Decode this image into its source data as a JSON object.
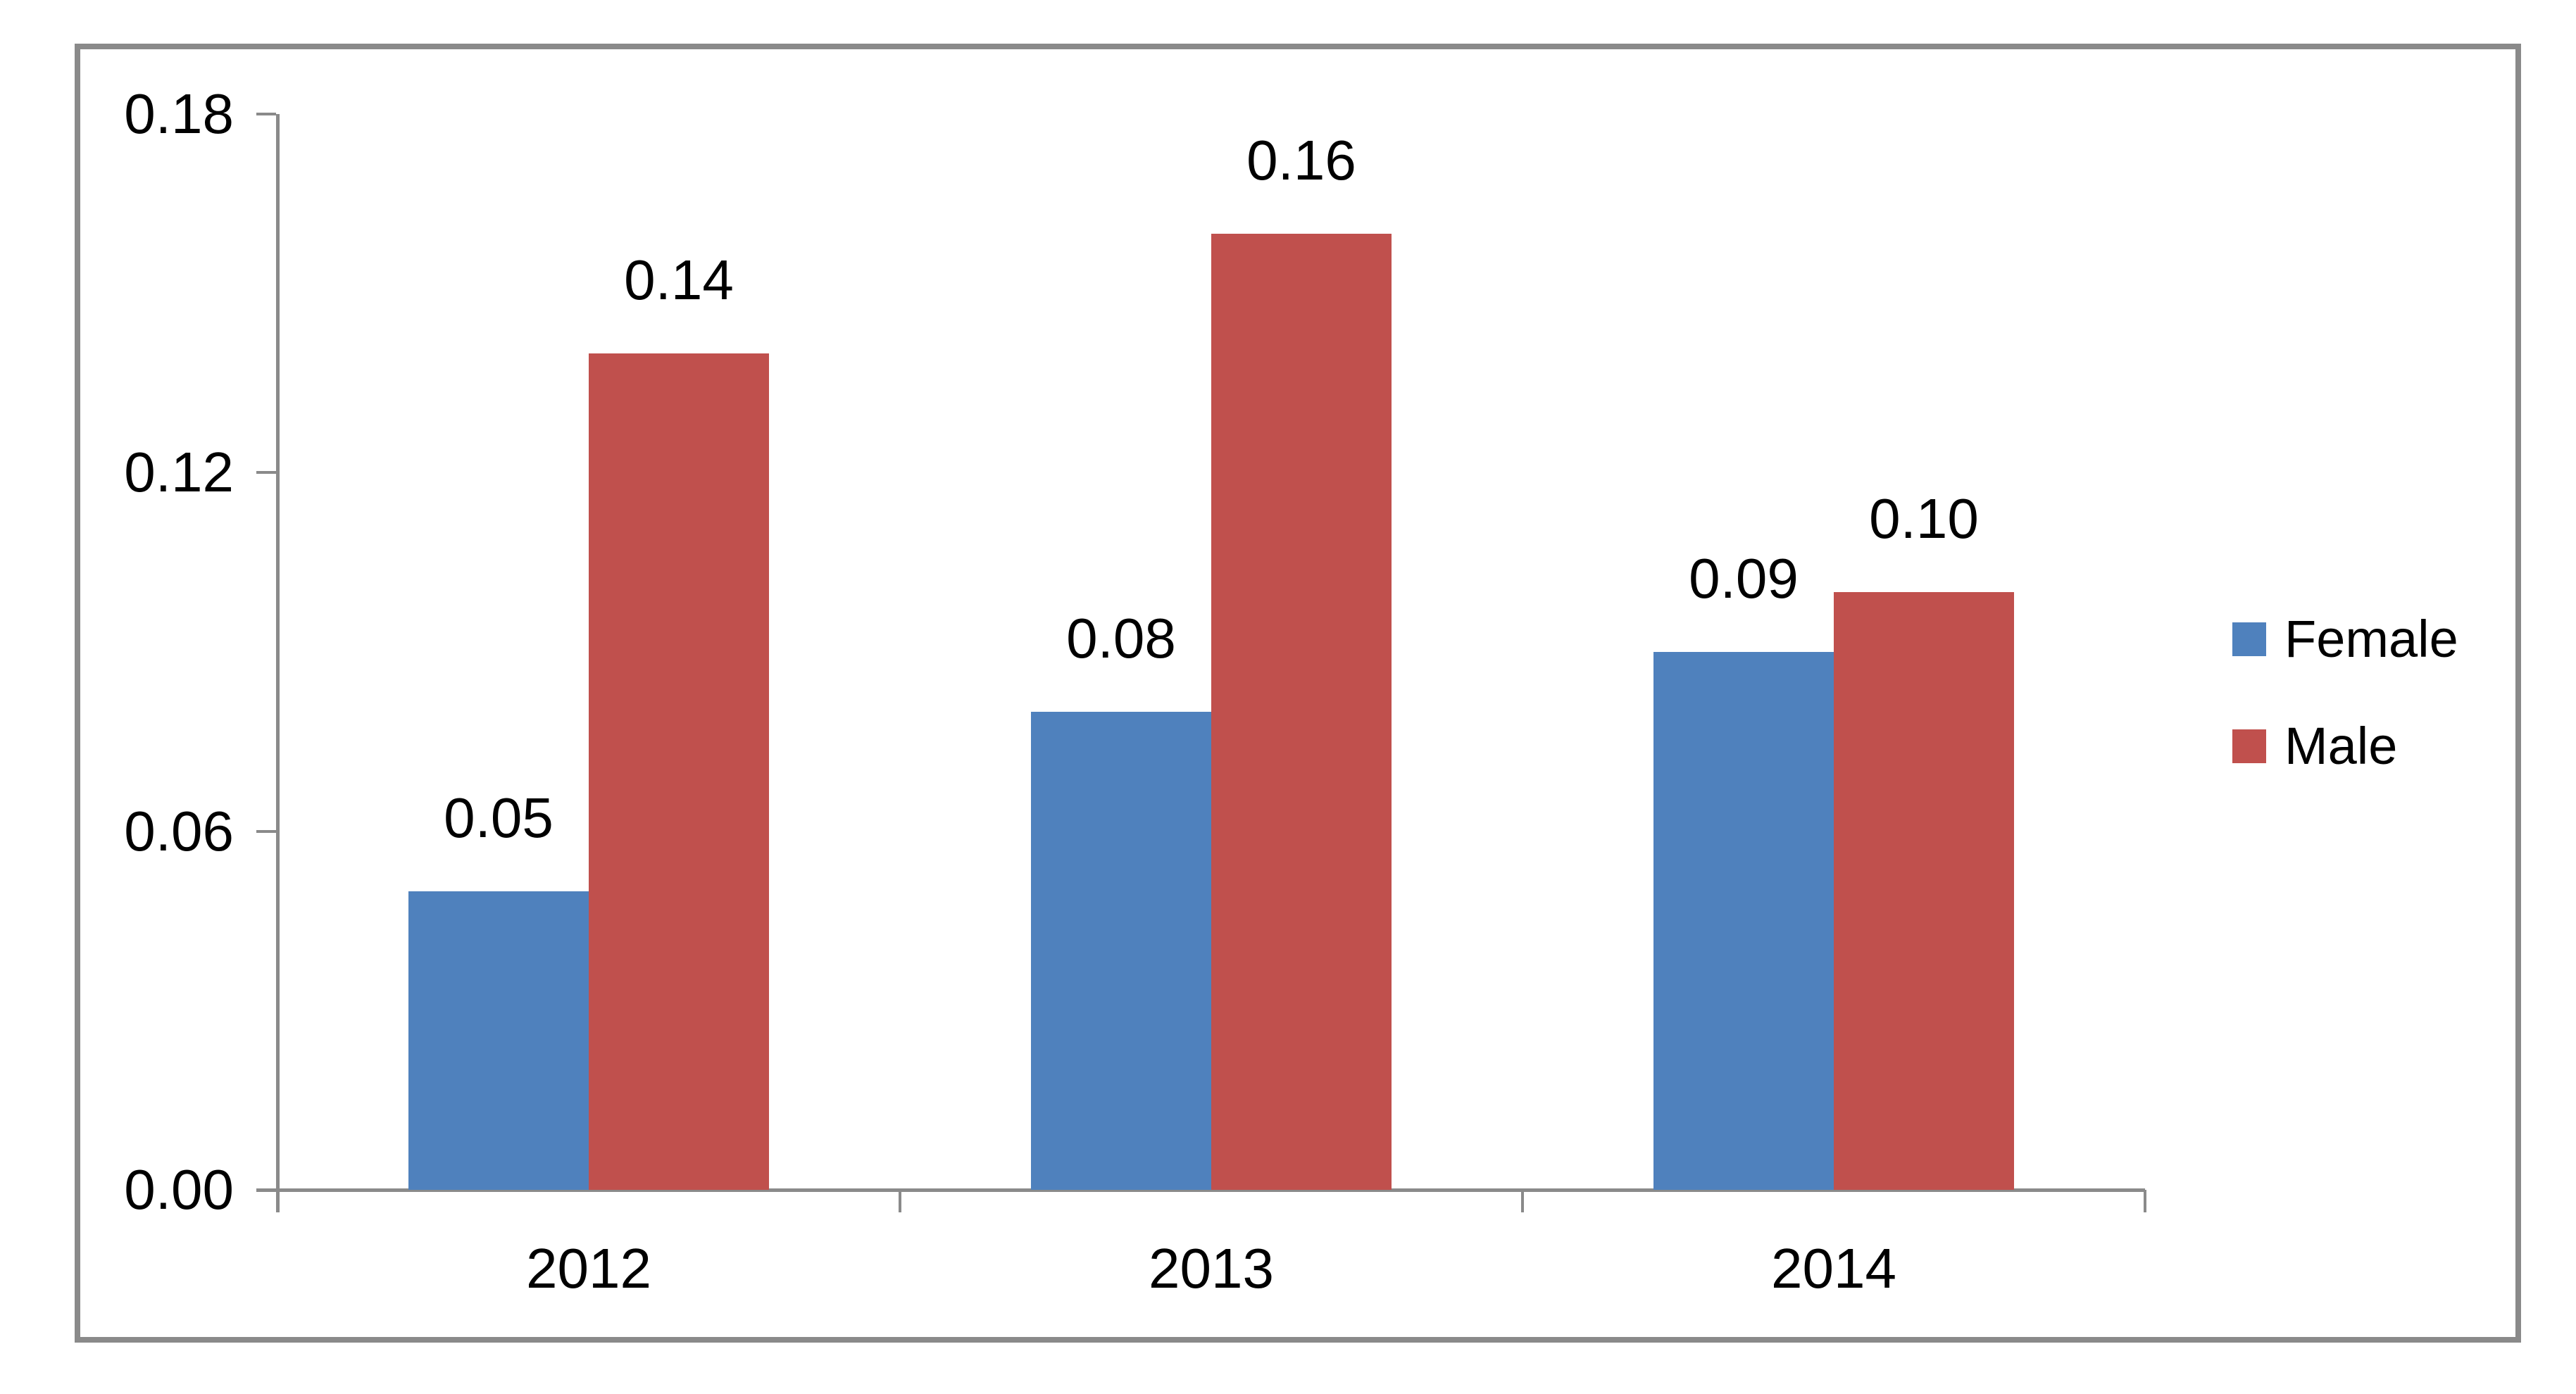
{
  "chart_data": {
    "type": "bar",
    "title": "",
    "xlabel": "",
    "ylabel": "",
    "categories": [
      "2012",
      "2013",
      "2014"
    ],
    "series": [
      {
        "name": "Female",
        "color": "#4F81BD",
        "values": [
          0.05,
          0.08,
          0.09
        ],
        "labels": [
          "0.05",
          "0.08",
          "0.09"
        ]
      },
      {
        "name": "Male",
        "color": "#C0504D",
        "values": [
          0.14,
          0.16,
          0.1
        ],
        "labels": [
          "0.14",
          "0.16",
          "0.10"
        ]
      }
    ],
    "y_axis": {
      "min": 0,
      "max": 0.18,
      "ticks": [
        "0.00",
        "0.06",
        "0.12",
        "0.18"
      ]
    },
    "ylim": [
      0,
      0.18
    ],
    "grid": false,
    "legend_position": "right"
  },
  "styles": {
    "axis_color": "#8A8A8A",
    "frame_border_color": "#8A8A8A",
    "label_color": "#000000",
    "background": "#FFFFFF"
  }
}
